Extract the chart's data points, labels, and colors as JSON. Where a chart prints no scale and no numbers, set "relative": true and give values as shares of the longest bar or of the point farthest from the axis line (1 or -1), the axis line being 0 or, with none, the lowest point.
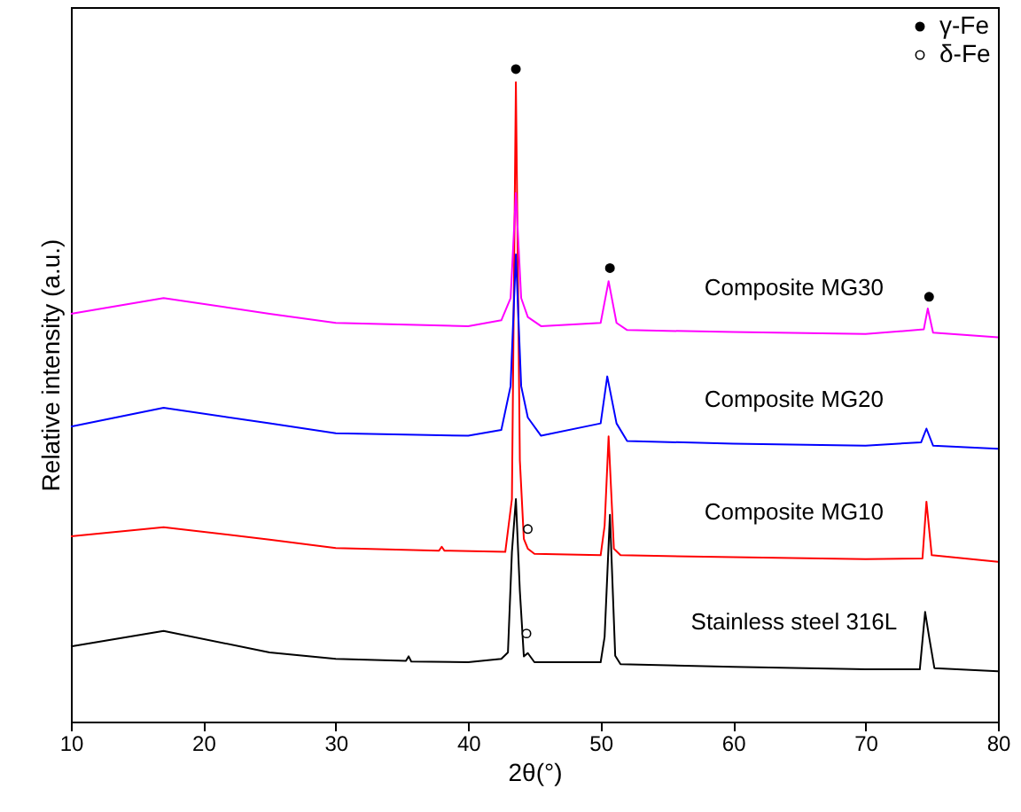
{
  "chart_data": {
    "type": "line",
    "relative": true,
    "xlabel": "2θ(°)",
    "ylabel": "Relative intensity (a.u.)",
    "xlim": [
      10,
      80
    ],
    "xticks": [
      10,
      20,
      30,
      40,
      50,
      60,
      70,
      80
    ],
    "legend": "top right",
    "grid": false,
    "series": [
      {
        "name": "Stainless steel 316L",
        "color": "#000000",
        "x": [
          10,
          17,
          25,
          30,
          35.3,
          35.5,
          35.7,
          40,
          42.5,
          43.0,
          43.3,
          43.6,
          43.9,
          44.2,
          44.5,
          45,
          50,
          50.3,
          50.7,
          51.1,
          51.5,
          60,
          70,
          74.1,
          74.5,
          74.8,
          75.2,
          80
        ],
        "values": [
          0.115,
          0.139,
          0.106,
          0.096,
          0.093,
          0.1,
          0.092,
          0.091,
          0.096,
          0.106,
          0.26,
          0.341,
          0.2,
          0.1,
          0.105,
          0.091,
          0.091,
          0.13,
          0.317,
          0.101,
          0.088,
          0.084,
          0.08,
          0.08,
          0.168,
          0.13,
          0.082,
          0.077
        ]
      },
      {
        "name": "Composite MG10",
        "color": "#ff0000",
        "x": [
          10,
          17,
          25,
          30,
          37.8,
          38,
          38.2,
          42.8,
          43.3,
          43.6,
          43.9,
          44.2,
          44.5,
          45,
          50,
          50.3,
          50.6,
          51,
          51.5,
          60,
          70,
          74.3,
          74.6,
          75,
          80
        ],
        "values": [
          0.284,
          0.298,
          0.279,
          0.266,
          0.262,
          0.268,
          0.262,
          0.26,
          0.341,
          0.98,
          0.4,
          0.28,
          0.265,
          0.257,
          0.255,
          0.3,
          0.437,
          0.265,
          0.255,
          0.252,
          0.249,
          0.25,
          0.337,
          0.255,
          0.245
        ]
      },
      {
        "name": "Composite MG20",
        "color": "#0000ff",
        "x": [
          10,
          17,
          25,
          30,
          40,
          42.5,
          43.2,
          43.6,
          44.0,
          44.5,
          45.5,
          50,
          50.5,
          51.2,
          52,
          60,
          70,
          74.2,
          74.6,
          75.1,
          80
        ],
        "values": [
          0.452,
          0.481,
          0.457,
          0.442,
          0.438,
          0.447,
          0.514,
          0.716,
          0.514,
          0.466,
          0.438,
          0.457,
          0.529,
          0.457,
          0.43,
          0.426,
          0.423,
          0.428,
          0.449,
          0.423,
          0.418
        ]
      },
      {
        "name": "Composite MG30",
        "color": "#ff00ff",
        "x": [
          10,
          17,
          25,
          30,
          40,
          42.5,
          43.2,
          43.6,
          44.0,
          44.5,
          45.5,
          50,
          50.6,
          51.2,
          52,
          60,
          70,
          74.4,
          74.7,
          75.1,
          80
        ],
        "values": [
          0.625,
          0.649,
          0.625,
          0.611,
          0.606,
          0.615,
          0.649,
          0.81,
          0.649,
          0.62,
          0.606,
          0.611,
          0.675,
          0.611,
          0.6,
          0.597,
          0.594,
          0.601,
          0.633,
          0.596,
          0.589
        ]
      },
      {
        "name": "γ-Fe",
        "type": "scatter",
        "marker": "circle",
        "color": "#000000",
        "x": [
          43.6,
          50.7,
          74.8
        ],
        "values": [
          1.0,
          0.695,
          0.651
        ]
      },
      {
        "name": "δ-Fe",
        "type": "scatter",
        "marker": "circle",
        "color": "#ffffff",
        "x": [
          44.5,
          44.4
        ],
        "values": [
          0.295,
          0.135
        ]
      }
    ]
  }
}
